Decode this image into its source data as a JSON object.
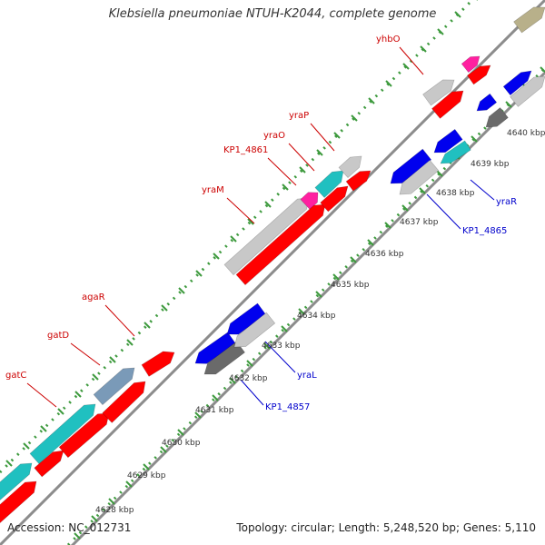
{
  "title": "Klebsiella pneumoniae NTUH-K2044, complete genome",
  "accession": "Accession: NC_012731",
  "summary": "Topology: circular; Length: 5,248,520 bp; Genes: 5,110",
  "colors": {
    "backbone": "#8c8c8c",
    "ruler_dots": "#3d9a3d",
    "forward_label": "#cc0000",
    "reverse_label": "#0000cc",
    "tick_text": "#333333",
    "cds_red": "#ff0000",
    "cds_gray": "#c8c8c8",
    "cds_blue": "#0000ee",
    "cds_cyan": "#20c0c0",
    "cds_magenta": "#ff20a0",
    "cds_dark": "#6a6a6a"
  },
  "kbp_ticks": [
    "4628 kbp",
    "4629 kbp",
    "4630 kbp",
    "4631 kbp",
    "4632 kbp",
    "4633 kbp",
    "4634 kbp",
    "4635 kbp",
    "4636 kbp",
    "4637 kbp",
    "4638 kbp",
    "4639 kbp",
    "4640 kbp"
  ],
  "gene_labels": {
    "forward": [
      "gatC",
      "gatD",
      "agaR",
      "yraM",
      "KP1_4861",
      "yraO",
      "yraP",
      "yhbO"
    ],
    "reverse": [
      "KP1_4857",
      "yraL",
      "KP1_4865",
      "yraR"
    ]
  }
}
